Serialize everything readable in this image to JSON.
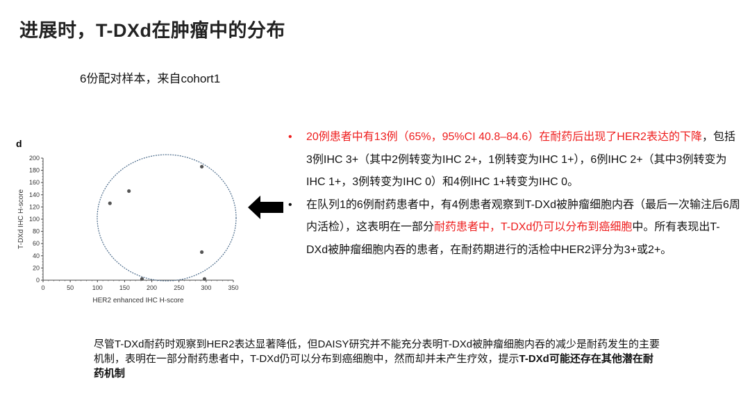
{
  "title": "进展时，T-DXd在肿瘤中的分布",
  "subtitle": "6份配对样本，来自cohort1",
  "chart_data": {
    "type": "scatter",
    "panel_label": "d",
    "xlabel": "HER2 enhanced IHC H-score",
    "ylabel": "T-DXd IHC H-score",
    "xlim": [
      0,
      350
    ],
    "ylim": [
      0,
      200
    ],
    "xticks": [
      0,
      50,
      100,
      150,
      200,
      250,
      300,
      350
    ],
    "yticks": [
      0,
      20,
      40,
      60,
      80,
      100,
      120,
      140,
      160,
      180,
      200
    ],
    "points": [
      {
        "x": 123,
        "y": 126
      },
      {
        "x": 158,
        "y": 146
      },
      {
        "x": 292,
        "y": 186
      },
      {
        "x": 292,
        "y": 46
      },
      {
        "x": 182,
        "y": 2
      },
      {
        "x": 297,
        "y": 2
      }
    ],
    "grid": false,
    "point_color": "#555555",
    "annotation": {
      "shape": "dashed-ellipse",
      "color": "#4a6a8a"
    }
  },
  "arrow_icon": "left-arrow",
  "bullets": [
    {
      "parts": [
        {
          "text": "20例患者中有13例（65%，95%CI 40.8–84.6）在耐药后出现了HER2表达的下降",
          "color": "red"
        },
        {
          "text": "，包括3例IHC 3+（其中2例转变为IHC 2+，1例转变为IHC 1+），6例IHC 2+（其中3例转变为IHC 1+，3例转变为IHC 0）和4例IHC 1+转变为IHC 0。",
          "color": "black"
        }
      ],
      "bullet_color": "red"
    },
    {
      "parts": [
        {
          "text": "在队列1的6例耐药患者中，有4例患者观察到T-DXd被肿瘤细胞内吞（最后一次输注后6周内活检），这表明在一部分",
          "color": "black"
        },
        {
          "text": "耐药患者中，T-DXd仍可以分布到癌细胞",
          "color": "red"
        },
        {
          "text": "中。所有表现出T-DXd被肿瘤细胞内吞的患者，在耐药期进行的活检中HER2评分为3+或2+。",
          "color": "black"
        }
      ],
      "bullet_color": "black"
    }
  ],
  "summary": {
    "normal": "尽管T-DXd耐药时观察到HER2表达显著降低，但DAISY研究并不能充分表明T-DXd被肿瘤细胞内吞的减少是耐药发生的主要机制，表明在一部分耐药患者中，T-DXd仍可以分布到癌细胞中，然而却并未产生疗效，提示",
    "bold": "T-DXd可能还存在其他潜在耐药机制"
  },
  "colors": {
    "accent_red": "#ee1c1c",
    "text": "#111111"
  }
}
